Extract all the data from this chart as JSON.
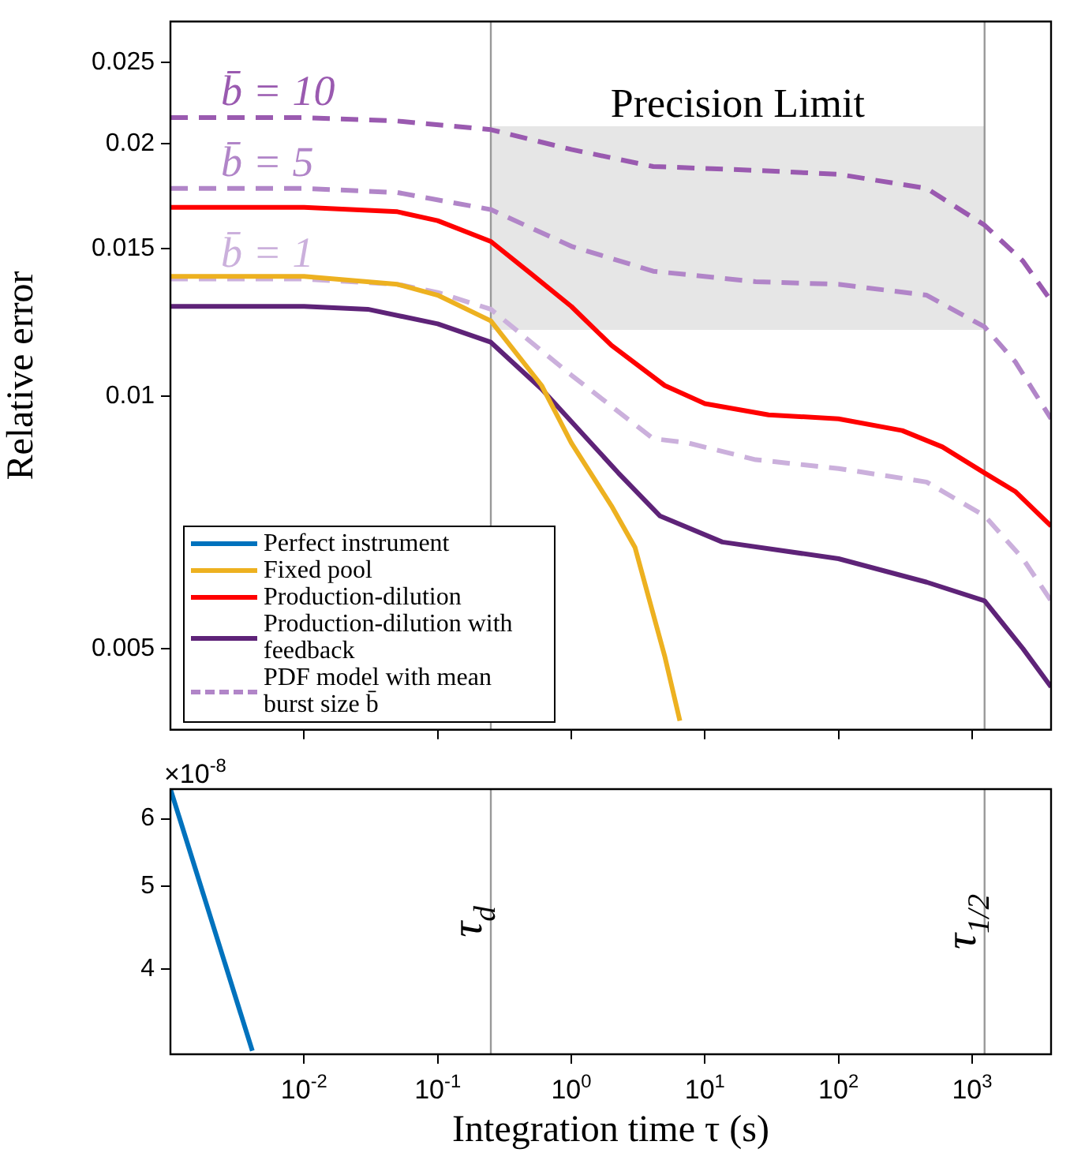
{
  "chart_data": [
    {
      "type": "line",
      "ylabel": "Relative error",
      "log": "xy",
      "xlim": [
        0.001,
        3900
      ],
      "ylim": [
        0.004,
        0.028
      ],
      "xticks": [
        0.01,
        0.1,
        1,
        10,
        100,
        1000
      ],
      "yticks": [
        0.005,
        0.01,
        0.015,
        0.02,
        0.025
      ],
      "tick_labels": "y",
      "grid": false,
      "legend": "bottom left",
      "marker": "none",
      "series": [
        {
          "name": "Perfect instrument",
          "color": "#0072bd"
        },
        {
          "name": "Fixed pool",
          "color": "#edb120",
          "x": [
            0.001,
            0.01,
            0.05,
            0.1,
            0.25,
            0.6,
            1,
            2,
            3,
            5,
            6.5
          ],
          "values": [
            0.0139,
            0.0139,
            0.0136,
            0.0132,
            0.0123,
            0.0103,
            0.0088,
            0.0074,
            0.0066,
            0.0049,
            0.0041
          ]
        },
        {
          "name": "Production-dilution",
          "color": "#ff0000",
          "x": [
            0.001,
            0.01,
            0.05,
            0.1,
            0.25,
            0.5,
            1,
            2,
            5,
            10,
            30,
            100,
            300,
            600,
            1240,
            2100,
            3900
          ],
          "values": [
            0.0168,
            0.0168,
            0.0166,
            0.0162,
            0.0153,
            0.014,
            0.0128,
            0.0115,
            0.0103,
            0.0098,
            0.0095,
            0.0094,
            0.0091,
            0.0087,
            0.0081,
            0.0077,
            0.007
          ]
        },
        {
          "name": "Production-dilution with feedback",
          "color": "#5e2378",
          "x": [
            0.001,
            0.01,
            0.03,
            0.1,
            0.25,
            0.6,
            2.25,
            4.6,
            13.5,
            100,
            457,
            1240,
            2400,
            3900
          ],
          "values": [
            0.0128,
            0.0128,
            0.0127,
            0.0122,
            0.0116,
            0.0102,
            0.0081,
            0.0072,
            0.0067,
            0.0064,
            0.006,
            0.0057,
            0.005,
            0.0045
          ]
        },
        {
          "color": "#9a5ab0",
          "line_style": "dashed",
          "x": [
            0.001,
            0.01,
            0.05,
            0.25,
            1,
            4.1,
            24,
            100,
            457,
            1240,
            2400,
            3900
          ],
          "values": [
            0.0215,
            0.0215,
            0.0213,
            0.0208,
            0.0197,
            0.0188,
            0.0186,
            0.0184,
            0.0177,
            0.016,
            0.0145,
            0.013
          ]
        },
        {
          "name": "PDF model with mean burst size b̄",
          "color": "#b185c8",
          "line_style": "dashed",
          "x": [
            0.001,
            0.01,
            0.05,
            0.25,
            1,
            4.1,
            24,
            100,
            457,
            1240,
            2100,
            3900
          ],
          "values": [
            0.0177,
            0.0177,
            0.0175,
            0.0167,
            0.0151,
            0.0141,
            0.0137,
            0.0136,
            0.0132,
            0.0121,
            0.011,
            0.0094
          ]
        },
        {
          "color": "#cbb0dc",
          "line_style": "dashed",
          "x": [
            0.001,
            0.01,
            0.05,
            0.1,
            0.25,
            1,
            4.1,
            7.4,
            24,
            100,
            457,
            1240,
            2400,
            3900
          ],
          "values": [
            0.0138,
            0.0138,
            0.0136,
            0.0133,
            0.0127,
            0.0106,
            0.0089,
            0.0088,
            0.0084,
            0.0082,
            0.0079,
            0.0072,
            0.0064,
            0.0057
          ]
        }
      ],
      "ref_lines": [
        {
          "axis": "x",
          "value": 0.25,
          "label": null,
          "color": "#999999"
        },
        {
          "axis": "x",
          "value": 1240,
          "label": null,
          "color": "#999999"
        }
      ],
      "bands": [
        {
          "axis": "y",
          "from": 0.012,
          "to": 0.021,
          "label": "Precision Limit",
          "color": "#e6e6e6"
        }
      ],
      "annotations": [
        "b̄ = 10",
        "b̄ = 5",
        "b̄ = 1"
      ]
    },
    {
      "type": "line",
      "xlabel": "Integration time τ (s)",
      "log": "xy",
      "xlim": [
        0.001,
        3900
      ],
      "ylim": [
        3.18,
        6.5
      ],
      "xticks": [
        {
          "value": 0.01,
          "label": "10$^{-2}$"
        },
        {
          "value": 0.1,
          "label": "10$^{-1}$"
        },
        {
          "value": 1,
          "label": "10$^{0}$"
        },
        {
          "value": 10,
          "label": "10$^{1}$"
        },
        {
          "value": 100,
          "label": "10$^{2}$"
        },
        {
          "value": 1000,
          "label": "10$^{3}$"
        }
      ],
      "yticks": [
        4,
        5,
        6
      ],
      "grid": false,
      "marker": "none",
      "series": [
        {
          "color": "#0072bd",
          "x": [
            0.001,
            0.0041
          ],
          "values": [
            6.5,
            3.21
          ]
        }
      ],
      "ref_lines": [
        {
          "axis": "x",
          "value": 0.25,
          "label": "τ$_{d}$",
          "color": "#999999"
        },
        {
          "axis": "x",
          "value": 1240,
          "label": "τ$_{1/2}$",
          "color": "#999999"
        }
      ],
      "annotations": [
        "×10$^{-8}$"
      ]
    }
  ]
}
